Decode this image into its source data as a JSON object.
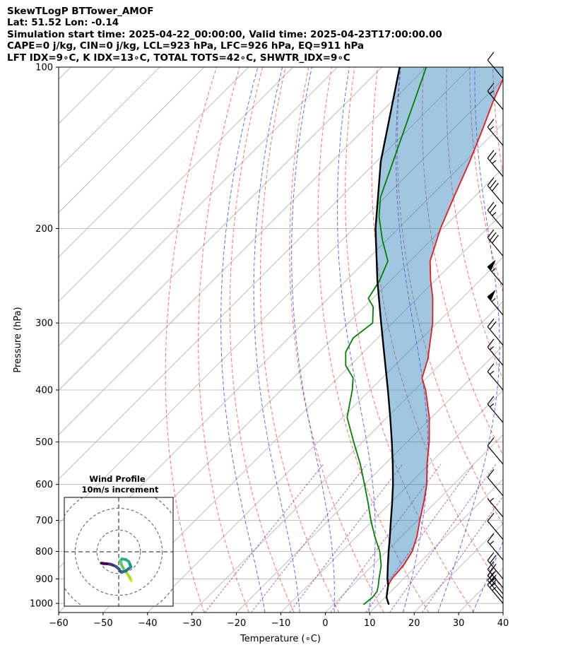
{
  "header": {
    "lines": [
      "SkewTLogP BTTower_AMOF",
      "Lat: 51.52   Lon: -0.14",
      "Simulation start time: 2025-04-22_00:00:00, Valid time: 2025-04-23T17:00:00.00",
      "CAPE=0 j/kg, CIN=0 j/kg, LCL=923 hPa, LFC=926 hPa, EQ=911 hPa",
      "LFT IDX=9∘C, K IDX=13∘C, TOTAL TOTS=42∘C, SHWTR_IDX=9∘C"
    ]
  },
  "chart_data": [
    {
      "type": "line",
      "title": "",
      "xlabel": "Temperature (∘C)",
      "ylabel": "Pressure (hPa)",
      "xlim": [
        -60,
        40
      ],
      "ylim": [
        1040,
        100
      ],
      "yscale": "log",
      "skew_deg": 45,
      "grid": true,
      "x_ticks": [
        -60,
        -50,
        -40,
        -30,
        -20,
        -10,
        0,
        10,
        20,
        30,
        40
      ],
      "x_tick_labels": [
        "−60",
        "−50",
        "−40",
        "−30",
        "−20",
        "−10",
        "0",
        "10",
        "20",
        "30",
        "40"
      ],
      "y_ticks": [
        1000,
        900,
        800,
        700,
        600,
        500,
        400,
        300,
        200,
        100
      ],
      "y_tick_labels": [
        "1000",
        "900",
        "800",
        "700",
        "600",
        "500",
        "400",
        "300",
        "200",
        "100"
      ],
      "series": [
        {
          "role": "temperature",
          "color": "#e41a1c",
          "pressure": [
            1005,
            975,
            950,
            925,
            900,
            850,
            800,
            750,
            700,
            650,
            600,
            550,
            500,
            450,
            400,
            380,
            350,
            300,
            270,
            250,
            230,
            200,
            175,
            150,
            130,
            115,
            100
          ],
          "temperature": [
            12.5,
            10.4,
            9.2,
            8.0,
            7.4,
            7.0,
            5.8,
            3.5,
            0.5,
            -2.5,
            -6.0,
            -10.5,
            -15.0,
            -20.5,
            -27.5,
            -31.0,
            -34.0,
            -41.0,
            -46.5,
            -51.0,
            -55.5,
            -60.5,
            -64.5,
            -69.0,
            -73.5,
            -77.5,
            -81.5
          ]
        },
        {
          "role": "dewpoint",
          "color": "#008000",
          "pressure": [
            1005,
            975,
            950,
            925,
            900,
            850,
            800,
            750,
            700,
            650,
            600,
            550,
            500,
            450,
            400,
            380,
            360,
            340,
            320,
            300,
            280,
            270,
            250,
            230,
            210,
            190,
            175,
            100
          ],
          "temperature": [
            6.8,
            7.2,
            6.9,
            5.8,
            4.5,
            2.0,
            -1.5,
            -6.0,
            -10.5,
            -15.0,
            -20.0,
            -25.5,
            -32.0,
            -39.0,
            -44.0,
            -46.5,
            -51.0,
            -54.0,
            -55.5,
            -54.5,
            -58.0,
            -61.0,
            -62.5,
            -65.0,
            -71.0,
            -77.0,
            -81.0,
            -100.0
          ]
        },
        {
          "role": "parcel",
          "color": "#000000",
          "pressure": [
            1005,
            975,
            950,
            925,
            900,
            850,
            800,
            750,
            700,
            650,
            600,
            550,
            500,
            450,
            400,
            350,
            300,
            250,
            200,
            150,
            100
          ],
          "temperature": [
            12.5,
            10.4,
            9.2,
            8.0,
            6.4,
            3.5,
            0.5,
            -2.6,
            -6.0,
            -9.6,
            -13.6,
            -18.2,
            -23.4,
            -29.3,
            -36.0,
            -43.7,
            -52.6,
            -63.0,
            -75.1,
            -89.0,
            -106.0
          ]
        }
      ],
      "wind_barbs": [
        {
          "pressure": 1000,
          "kts": 25
        },
        {
          "pressure": 980,
          "kts": 25
        },
        {
          "pressure": 960,
          "kts": 25
        },
        {
          "pressure": 935,
          "kts": 20
        },
        {
          "pressure": 900,
          "kts": 20
        },
        {
          "pressure": 830,
          "kts": 15
        },
        {
          "pressure": 760,
          "kts": 10
        },
        {
          "pressure": 690,
          "kts": 5
        },
        {
          "pressure": 630,
          "kts": 10
        },
        {
          "pressure": 550,
          "kts": 10
        },
        {
          "pressure": 460,
          "kts": 15
        },
        {
          "pressure": 400,
          "kts": 15
        },
        {
          "pressure": 360,
          "kts": 15
        },
        {
          "pressure": 330,
          "kts": 20
        },
        {
          "pressure": 290,
          "kts": 55
        },
        {
          "pressure": 255,
          "kts": 55
        },
        {
          "pressure": 225,
          "kts": 30
        },
        {
          "pressure": 200,
          "kts": 25
        },
        {
          "pressure": 180,
          "kts": 30
        },
        {
          "pressure": 160,
          "kts": 25
        },
        {
          "pressure": 140,
          "kts": 15
        },
        {
          "pressure": 120,
          "kts": 15
        },
        {
          "pressure": 105,
          "kts": 10
        }
      ]
    },
    {
      "type": "line",
      "title": "Wind Profile",
      "subtitle": "10m/s increment",
      "rings_ms": [
        10,
        20,
        30
      ],
      "range_ms": 25,
      "hodograph": {
        "u": [
          5.8,
          5.4,
          4.9,
          3.5,
          2.1,
          1.2,
          0.8,
          1.5,
          3.3,
          4.6,
          5.2,
          5.6,
          4.5,
          3.2,
          1.9,
          0.7,
          0.2,
          -1.2,
          -2.5,
          -3.5,
          -4.5,
          -5.5,
          -7.0,
          -7.8
        ],
        "v": [
          -13.5,
          -12.5,
          -11.5,
          -9.5,
          -7.5,
          -5.8,
          -4.0,
          -3.3,
          -3.6,
          -4.5,
          -5.8,
          -7.0,
          -7.8,
          -8.8,
          -9.2,
          -9.0,
          -8.0,
          -6.8,
          -6.2,
          -5.8,
          -5.6,
          -5.5,
          -5.4,
          -5.2
        ],
        "colormap": [
          "#440154",
          "#472d7b",
          "#3b528b",
          "#2c728e",
          "#21918c",
          "#28ae80",
          "#5ec962",
          "#addc30",
          "#fde725"
        ]
      }
    }
  ]
}
